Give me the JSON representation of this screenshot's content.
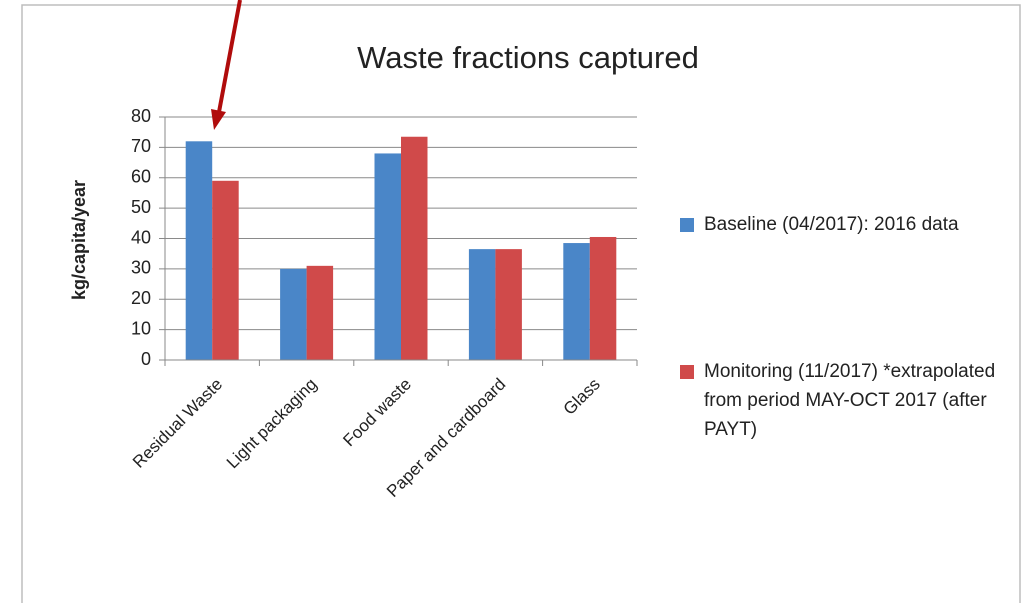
{
  "chart_data": {
    "type": "bar",
    "title": "Waste fractions captured",
    "y_label": "kg/capita/year",
    "categories": [
      "Residual Waste",
      "Light packaging",
      "Food waste",
      "Paper and cardboard",
      "Glass"
    ],
    "series": [
      {
        "name": "Baseline (04/2017): 2016 data",
        "color": "#4a86c8",
        "values": [
          72,
          30,
          68,
          36.5,
          38.5
        ]
      },
      {
        "name": "Monitoring (11/2017) *extrapolated from period MAY-OCT 2017 (after PAYT)",
        "color": "#d04a4a",
        "values": [
          59,
          31,
          73.5,
          36.5,
          40.5
        ]
      }
    ],
    "ylim": [
      0,
      80
    ],
    "yticks": [
      0,
      10,
      20,
      30,
      40,
      50,
      60,
      70,
      80
    ],
    "grid": true,
    "legend": "right"
  }
}
